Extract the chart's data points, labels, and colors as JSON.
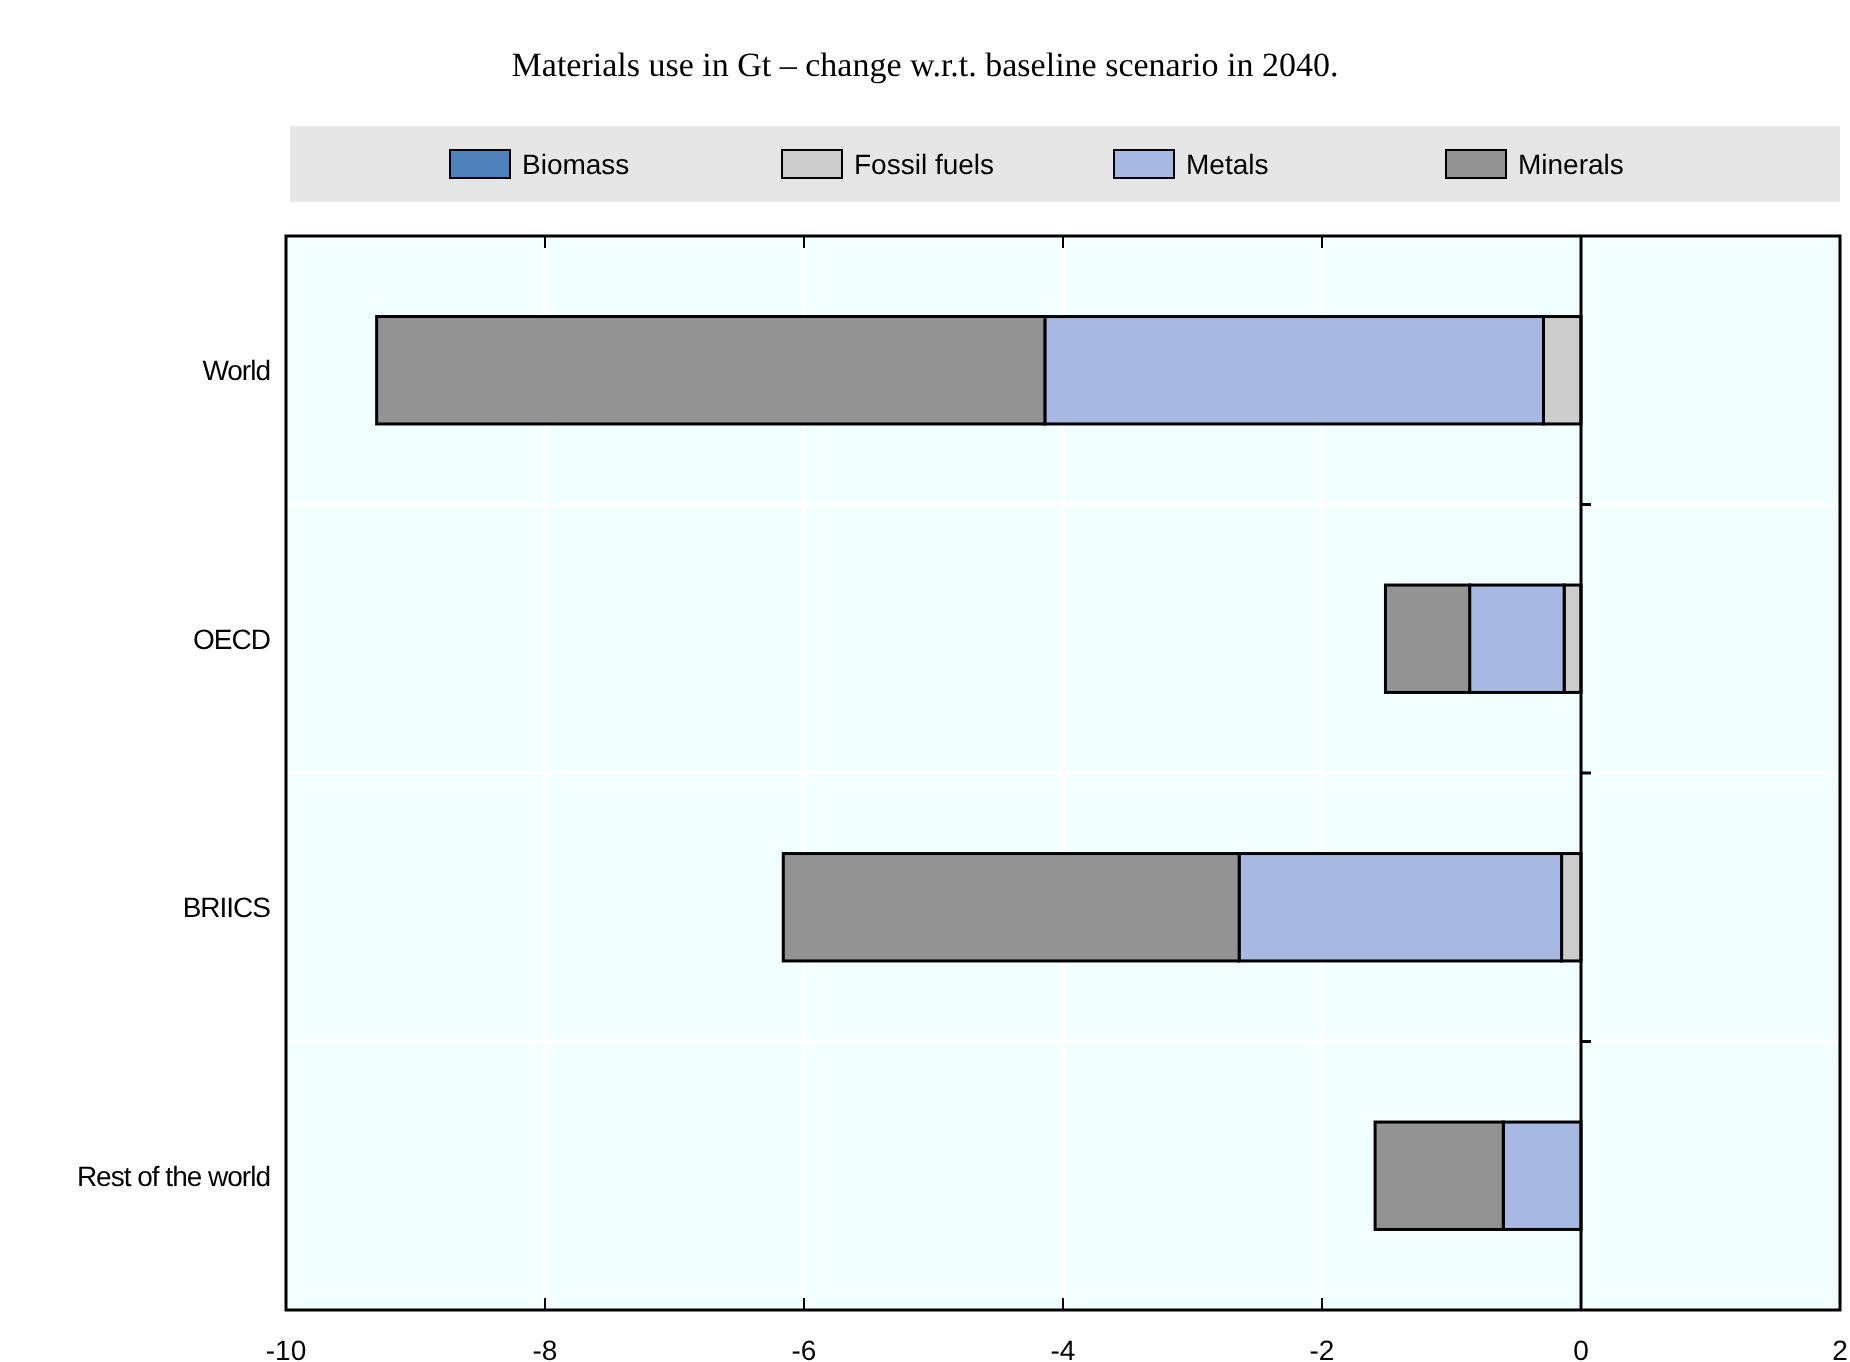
{
  "chart_data": {
    "type": "bar",
    "orientation": "horizontal",
    "stacked": true,
    "title": "Materials use in Gt – change w.r.t. baseline scenario in 2040.",
    "categories": [
      "World",
      "OECD",
      "BRIICS",
      "Rest of the world"
    ],
    "series": [
      {
        "name": "Biomass",
        "color": "#4f81bd",
        "values": [
          null,
          null,
          null,
          null
        ]
      },
      {
        "name": "Fossil fuels",
        "color": "#cccccc",
        "values": [
          -0.29,
          -0.13,
          -0.15,
          0
        ]
      },
      {
        "name": "Metals",
        "color": "#a7b8e2",
        "values": [
          -3.85,
          -0.73,
          -2.49,
          -0.6
        ]
      },
      {
        "name": "Minerals",
        "color": "#939393",
        "values": [
          -5.16,
          -0.65,
          -3.52,
          -0.99
        ]
      }
    ],
    "xlim": [
      -10,
      2
    ],
    "xticks": [
      -10,
      -8,
      -6,
      -4,
      -2,
      0,
      2
    ],
    "grid": true,
    "legend": "top"
  }
}
